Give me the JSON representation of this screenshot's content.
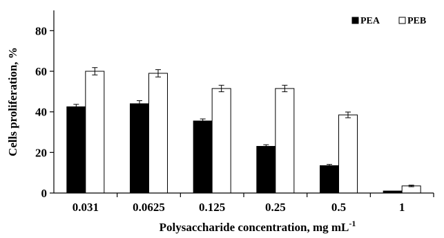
{
  "chart_data": {
    "type": "bar",
    "title": "",
    "xlabel": "Polysaccharide concentration, mg mL",
    "xlabel_superscript": "-1",
    "ylabel": "Cells proliferation, %",
    "categories": [
      "0.031",
      "0.0625",
      "0.125",
      "0.25",
      "0.5",
      "1"
    ],
    "yticks": [
      "0",
      "20",
      "40",
      "60",
      "80"
    ],
    "ylim": [
      0,
      90
    ],
    "grid": false,
    "legend_position": "top-right",
    "series": [
      {
        "name": "PEA",
        "values": [
          42.5,
          44,
          35.5,
          23,
          13.5,
          1
        ],
        "errors": [
          1.2,
          1.5,
          1.0,
          0.8,
          0.6,
          0
        ],
        "fill": "#000000",
        "stroke": "#000000"
      },
      {
        "name": "PEB",
        "values": [
          60,
          59,
          51.5,
          51.5,
          38.5,
          3.5
        ],
        "errors": [
          1.8,
          1.8,
          1.6,
          1.6,
          1.4,
          0.4
        ],
        "fill": "#ffffff",
        "stroke": "#000000"
      }
    ]
  }
}
